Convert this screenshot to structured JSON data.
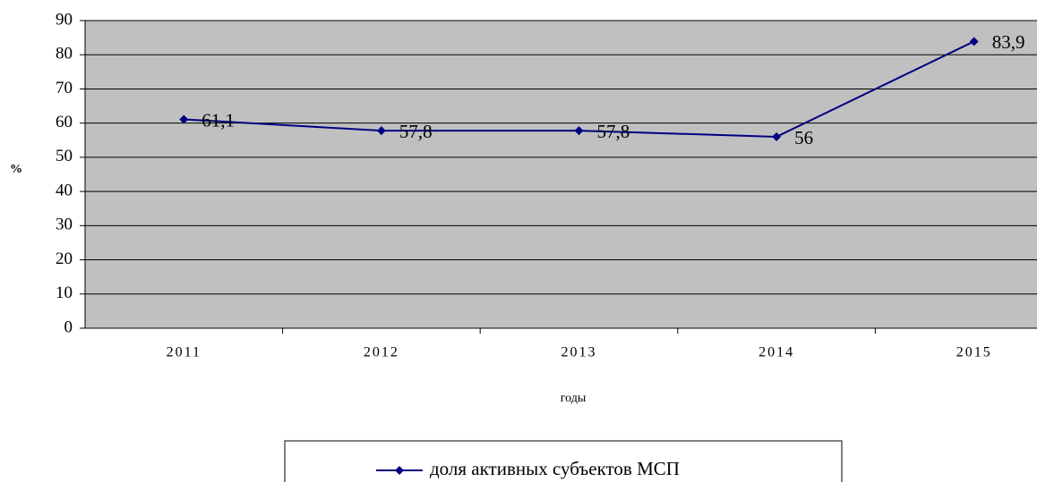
{
  "chart_data": {
    "type": "line",
    "categories": [
      "2011",
      "2012",
      "2013",
      "2014",
      "2015"
    ],
    "series": [
      {
        "name": "доля активных субъектов МСП",
        "color": "#000080",
        "values": [
          61.1,
          57.8,
          57.8,
          56,
          83.9
        ],
        "value_labels": [
          "61,1",
          "57,8",
          "57,8",
          "56",
          "83,9"
        ]
      }
    ],
    "y_label": "%",
    "x_label": "годы",
    "ylim": [
      0,
      90
    ],
    "yticks": [
      0,
      10,
      20,
      30,
      40,
      50,
      60,
      70,
      80,
      90
    ],
    "grid": true,
    "plot_background": "#c0c0c0",
    "legend": "bottom"
  }
}
